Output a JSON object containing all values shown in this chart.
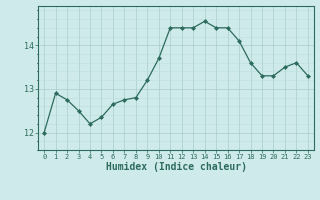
{
  "x": [
    0,
    1,
    2,
    3,
    4,
    5,
    6,
    7,
    8,
    9,
    10,
    11,
    12,
    13,
    14,
    15,
    16,
    17,
    18,
    19,
    20,
    21,
    22,
    23
  ],
  "y": [
    12.0,
    12.9,
    12.75,
    12.5,
    12.2,
    12.35,
    12.65,
    12.75,
    12.8,
    13.2,
    13.7,
    14.4,
    14.4,
    14.4,
    14.55,
    14.4,
    14.4,
    14.1,
    13.6,
    13.3,
    13.3,
    13.5,
    13.6,
    13.3
  ],
  "line_color": "#2d6b5e",
  "marker": "D",
  "markersize": 2.0,
  "linewidth": 0.9,
  "bg_color": "#ceeaea",
  "grid_color_major": "#aacece",
  "grid_color_minor": "#bddede",
  "xlabel": "Humidex (Indice chaleur)",
  "xlabel_fontsize": 7,
  "yticks": [
    12,
    13,
    14
  ],
  "ylim": [
    11.6,
    14.9
  ],
  "xlim": [
    -0.5,
    23.5
  ],
  "xtick_fontsize": 5,
  "ytick_fontsize": 6
}
